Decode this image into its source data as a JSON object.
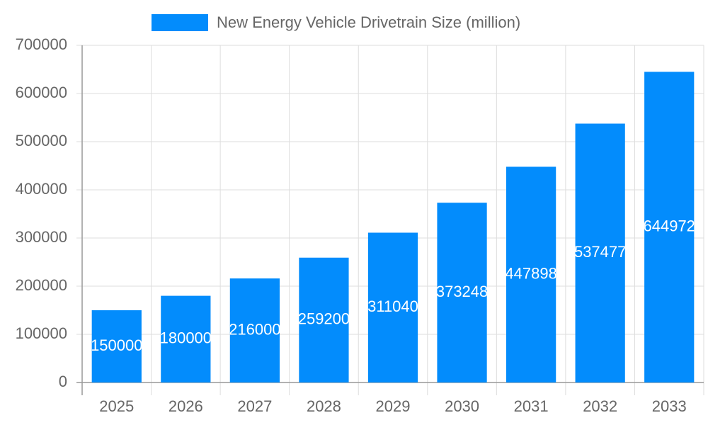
{
  "chart_data": {
    "type": "bar",
    "categories": [
      "2025",
      "2026",
      "2027",
      "2028",
      "2029",
      "2030",
      "2031",
      "2032",
      "2033"
    ],
    "series": [
      {
        "name": "New Energy Vehicle Drivetrain Size (million)",
        "color": "#038cfc",
        "values": [
          150000,
          180000,
          216000,
          259200,
          311040,
          373248,
          447898,
          537477,
          644972
        ]
      }
    ],
    "ylim": [
      0,
      700000
    ],
    "yticks": [
      0,
      100000,
      200000,
      300000,
      400000,
      500000,
      600000,
      700000
    ],
    "grid": true,
    "legend": "top"
  }
}
